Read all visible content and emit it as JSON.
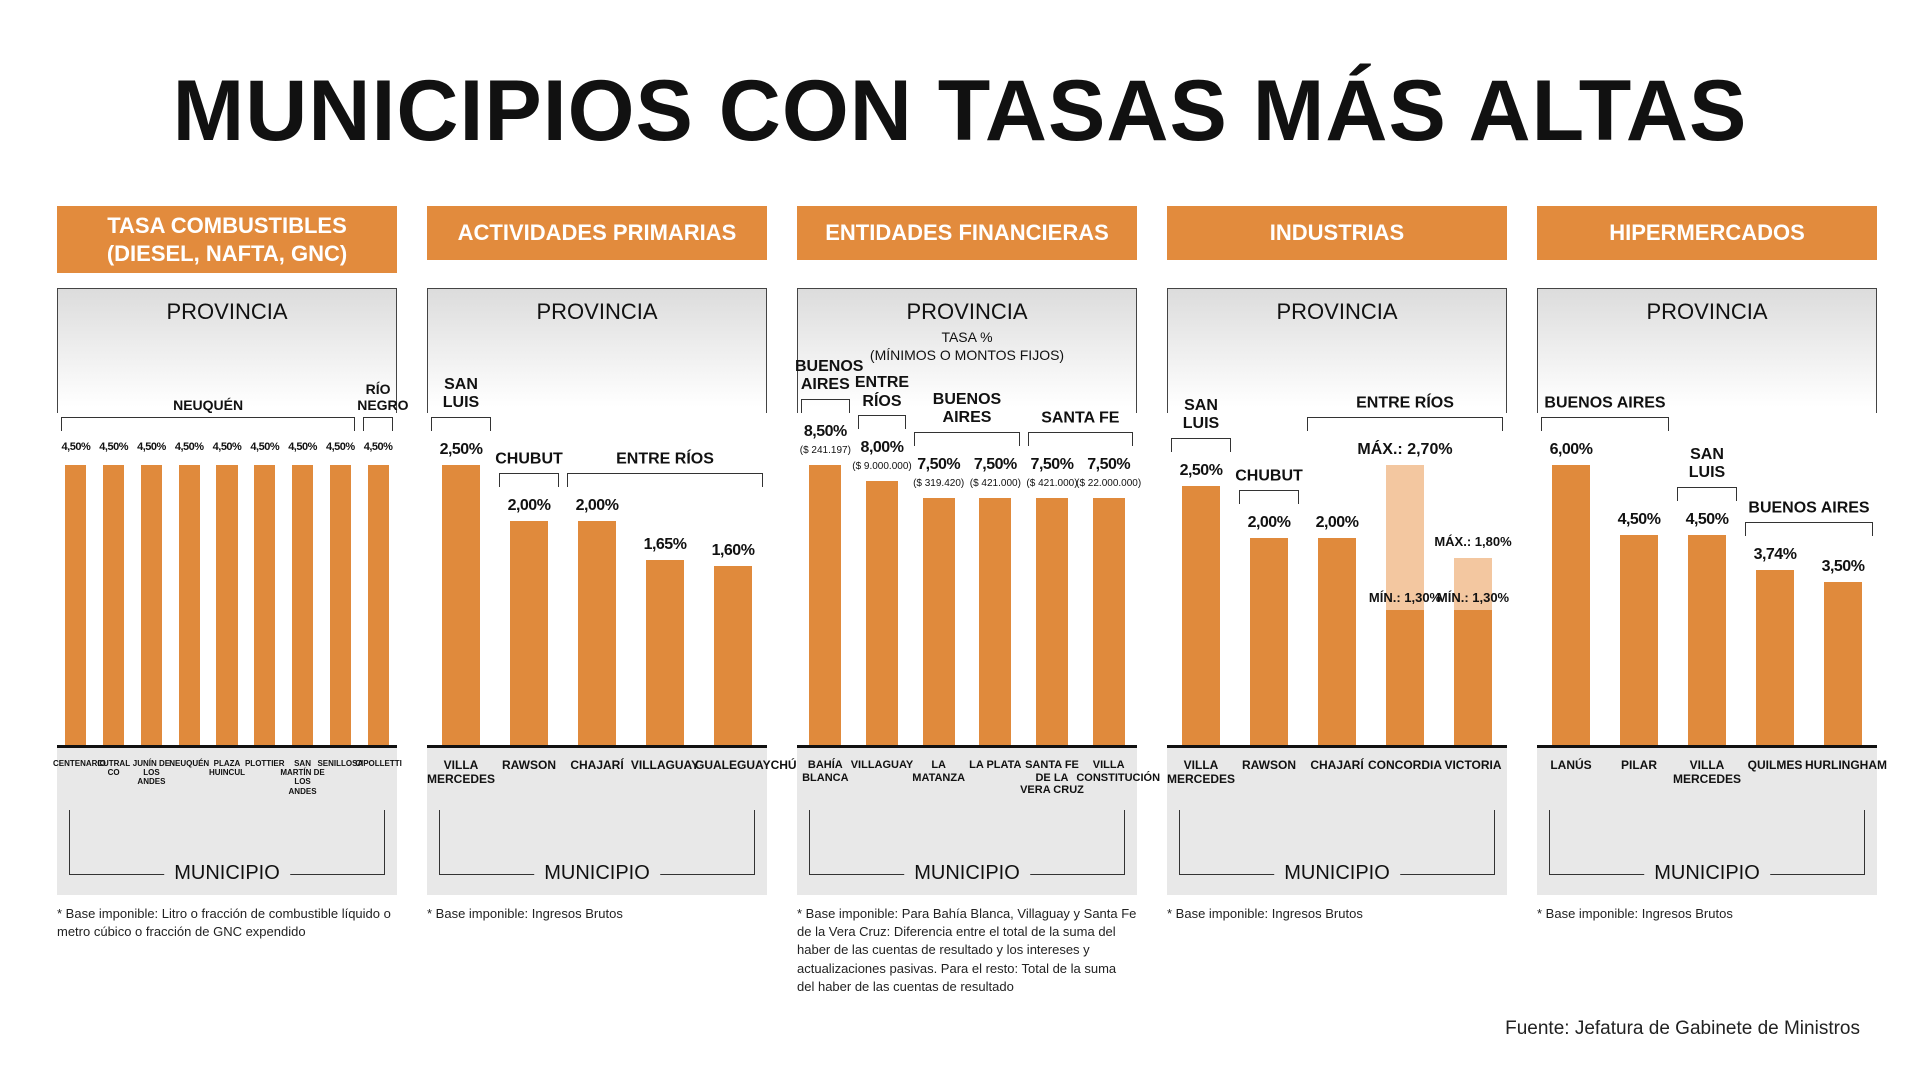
{
  "title": "MUNICIPIOS CON TASAS MÁS ALTAS",
  "source": "Fuente: Jefatura de Gabinete de Ministros",
  "chart_data": [
    {
      "type": "bar",
      "title": "TASA COMBUSTIBLES (DIESEL, NAFTA, GNC)",
      "top_label": "PROVINCIA",
      "bottom_label": "MUNICIPIO",
      "categories": [
        "CENTENARIO",
        "CUTRAL CO",
        "JUNÍN DE LOS ANDES",
        "NEUQUÉN",
        "PLAZA HUINCUL",
        "PLOTTIER",
        "SAN MARTÍN DE LOS ANDES",
        "SENILLOSA",
        "CIPOLLETTI"
      ],
      "values": [
        4.5,
        4.5,
        4.5,
        4.5,
        4.5,
        4.5,
        4.5,
        4.5,
        4.5
      ],
      "value_labels": [
        "4,50%",
        "4,50%",
        "4,50%",
        "4,50%",
        "4,50%",
        "4,50%",
        "4,50%",
        "4,50%",
        "4,50%"
      ],
      "color": "#e08a3c",
      "groups": [
        {
          "name": "NEUQUÉN",
          "count": 8
        },
        {
          "name": "RÍO NEGRO",
          "count": 1
        }
      ],
      "footnote": "* Base imponible: Litro o fracción de combustible líquido o metro cúbico o fracción de GNC expendido"
    },
    {
      "type": "bar",
      "title": "ACTIVIDADES PRIMARIAS",
      "top_label": "PROVINCIA",
      "bottom_label": "MUNICIPIO",
      "categories": [
        "VILLA MERCEDES",
        "RAWSON",
        "CHAJARÍ",
        "VILLAGUAY",
        "GUALEGUAYCHÚ"
      ],
      "values": [
        2.5,
        2,
        2,
        1.65,
        1.6
      ],
      "value_labels": [
        "2,50%",
        "2,00%",
        "2,00%",
        "1,65%",
        "1,60%"
      ],
      "color": "#e08a3c",
      "groups": [
        {
          "name": "SAN LUIS",
          "count": 1
        },
        {
          "name": "CHUBUT",
          "count": 1
        },
        {
          "name": "ENTRE RÍOS",
          "count": 3
        }
      ],
      "footnote": "* Base imponible: Ingresos Brutos"
    },
    {
      "type": "bar",
      "title": "ENTIDADES FINANCIERAS",
      "top_label": "PROVINCIA",
      "subtitles": [
        "TASA %",
        "(MÍNIMOS O MONTOS FIJOS)"
      ],
      "bottom_label": "MUNICIPIO",
      "categories": [
        "BAHÍA BLANCA",
        "VILLAGUAY",
        "LA MATANZA",
        "LA PLATA",
        "SANTA FE DE LA VERA CRUZ",
        "VILLA CONSTITUCIÓN"
      ],
      "values": [
        8.5,
        8,
        7.5,
        7.5,
        7.5,
        7.5
      ],
      "value_labels": [
        "8,50%",
        "8,00%",
        "7,50%",
        "7,50%",
        "7,50%",
        "7,50%"
      ],
      "notes": [
        "($ 241.197)",
        "($ 9.000.000)",
        "($ 319.420)",
        "($ 421.000)",
        "($ 421.000)",
        "($ 22.000.000)"
      ],
      "color": "#e08a3c",
      "groups": [
        {
          "name": "BUENOS AIRES",
          "count": 1
        },
        {
          "name": "ENTRE RÍOS",
          "count": 1
        },
        {
          "name": "BUENOS AIRES",
          "count": 2
        },
        {
          "name": "SANTA FE",
          "count": 2
        }
      ],
      "footnote": "* Base imponible: Para Bahía Blanca, Villaguay y Santa Fe de la Vera Cruz: Diferencia entre el total de la suma del haber de las cuentas de resultado y los intereses y actualizaciones pasivas. Para el resto: Total de la suma del haber de las cuentas de resultado"
    },
    {
      "type": "bar",
      "title": "INDUSTRIAS",
      "top_label": "PROVINCIA",
      "bottom_label": "MUNICIPIO",
      "categories": [
        "VILLA MERCEDES",
        "RAWSON",
        "CHAJARÍ",
        "CONCORDIA",
        "VICTORIA"
      ],
      "values": [
        2.5,
        2,
        2,
        null,
        null
      ],
      "value_labels": [
        "2,50%",
        "2,00%",
        "2,00%",
        null,
        null
      ],
      "ranges": [
        null,
        null,
        null,
        {
          "min": 1.3,
          "max": 2.7,
          "min_label": "MÍN.: 1,30%",
          "max_label": "MÁX.: 2,70%"
        },
        {
          "min": 1.3,
          "max": 1.8,
          "min_label": "MÍN.: 1,30%",
          "max_label": "MÁX.: 1,80%"
        }
      ],
      "color": "#e08a3c",
      "range_color": "#f3c7a0",
      "groups": [
        {
          "name": "SAN LUIS",
          "count": 1
        },
        {
          "name": "CHUBUT",
          "count": 1
        },
        {
          "name": "ENTRE RÍOS",
          "count": 3
        }
      ],
      "footnote": "* Base imponible: Ingresos Brutos"
    },
    {
      "type": "bar",
      "title": "HIPERMERCADOS",
      "top_label": "PROVINCIA",
      "bottom_label": "MUNICIPIO",
      "categories": [
        "LANÚS",
        "PILAR",
        "VILLA MERCEDES",
        "QUILMES",
        "HURLINGHAM"
      ],
      "values": [
        6,
        4.5,
        4.5,
        3.74,
        3.5
      ],
      "value_labels": [
        "6,00%",
        "4,50%",
        "4,50%",
        "3,74%",
        "3,50%"
      ],
      "color": "#e08a3c",
      "groups": [
        {
          "name": "BUENOS AIRES",
          "count": 2
        },
        {
          "name": "SAN LUIS",
          "count": 1
        },
        {
          "name": "BUENOS AIRES",
          "count": 2
        }
      ],
      "footnote": "* Base imponible: Ingresos Brutos"
    }
  ]
}
